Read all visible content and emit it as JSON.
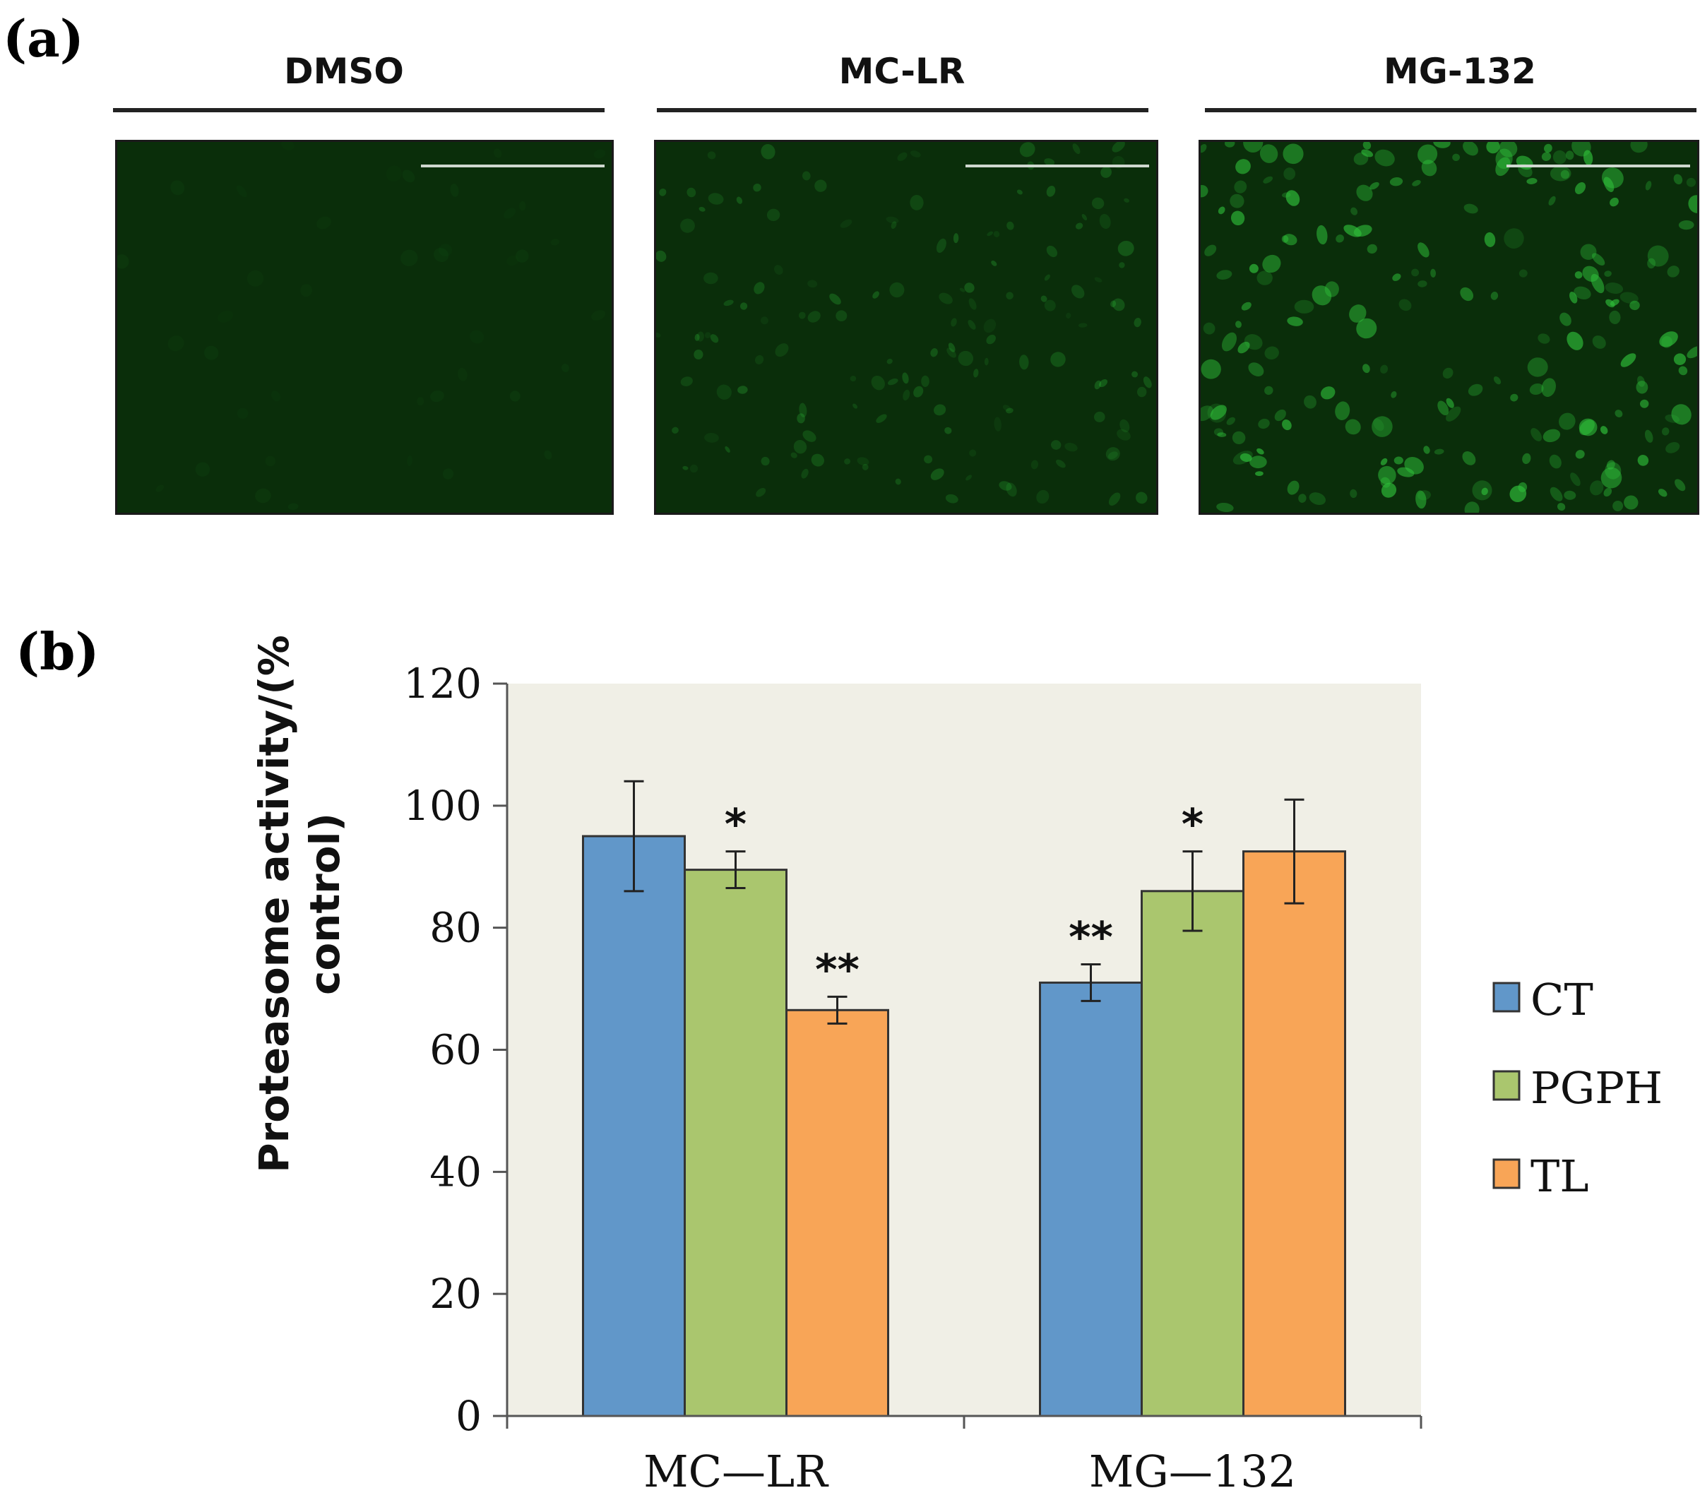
{
  "panel_a": {
    "label": "(a)",
    "conditions": [
      "DMSO",
      "MC-LR",
      "MG-132"
    ],
    "image_color": "#0a2e0a",
    "cell_color": "#2fbf3a"
  },
  "panel_b": {
    "label": "(b)"
  },
  "chart_data": {
    "type": "bar",
    "categories": [
      "MC—LR",
      "MG—132"
    ],
    "series": [
      {
        "name": "CT",
        "color": "#6197c9",
        "values": [
          95,
          71
        ],
        "errors": [
          9,
          3
        ],
        "significance": [
          "",
          "**"
        ]
      },
      {
        "name": "PGPH",
        "color": "#aac66e",
        "values": [
          89.5,
          86
        ],
        "errors": [
          3,
          6.5
        ],
        "significance": [
          "*",
          "*"
        ]
      },
      {
        "name": "TL",
        "color": "#f8a557",
        "values": [
          66.5,
          92.5
        ],
        "errors": [
          2.2,
          8.5
        ],
        "significance": [
          "**",
          ""
        ]
      }
    ],
    "ylabel": "Proteasome activity/(% control)",
    "ylim": [
      0,
      120
    ],
    "yticks": [
      "0",
      "20",
      "40",
      "60",
      "80",
      "100",
      "120"
    ],
    "legend_position": "right",
    "plot_background": "#f0efe6",
    "grid": false
  }
}
